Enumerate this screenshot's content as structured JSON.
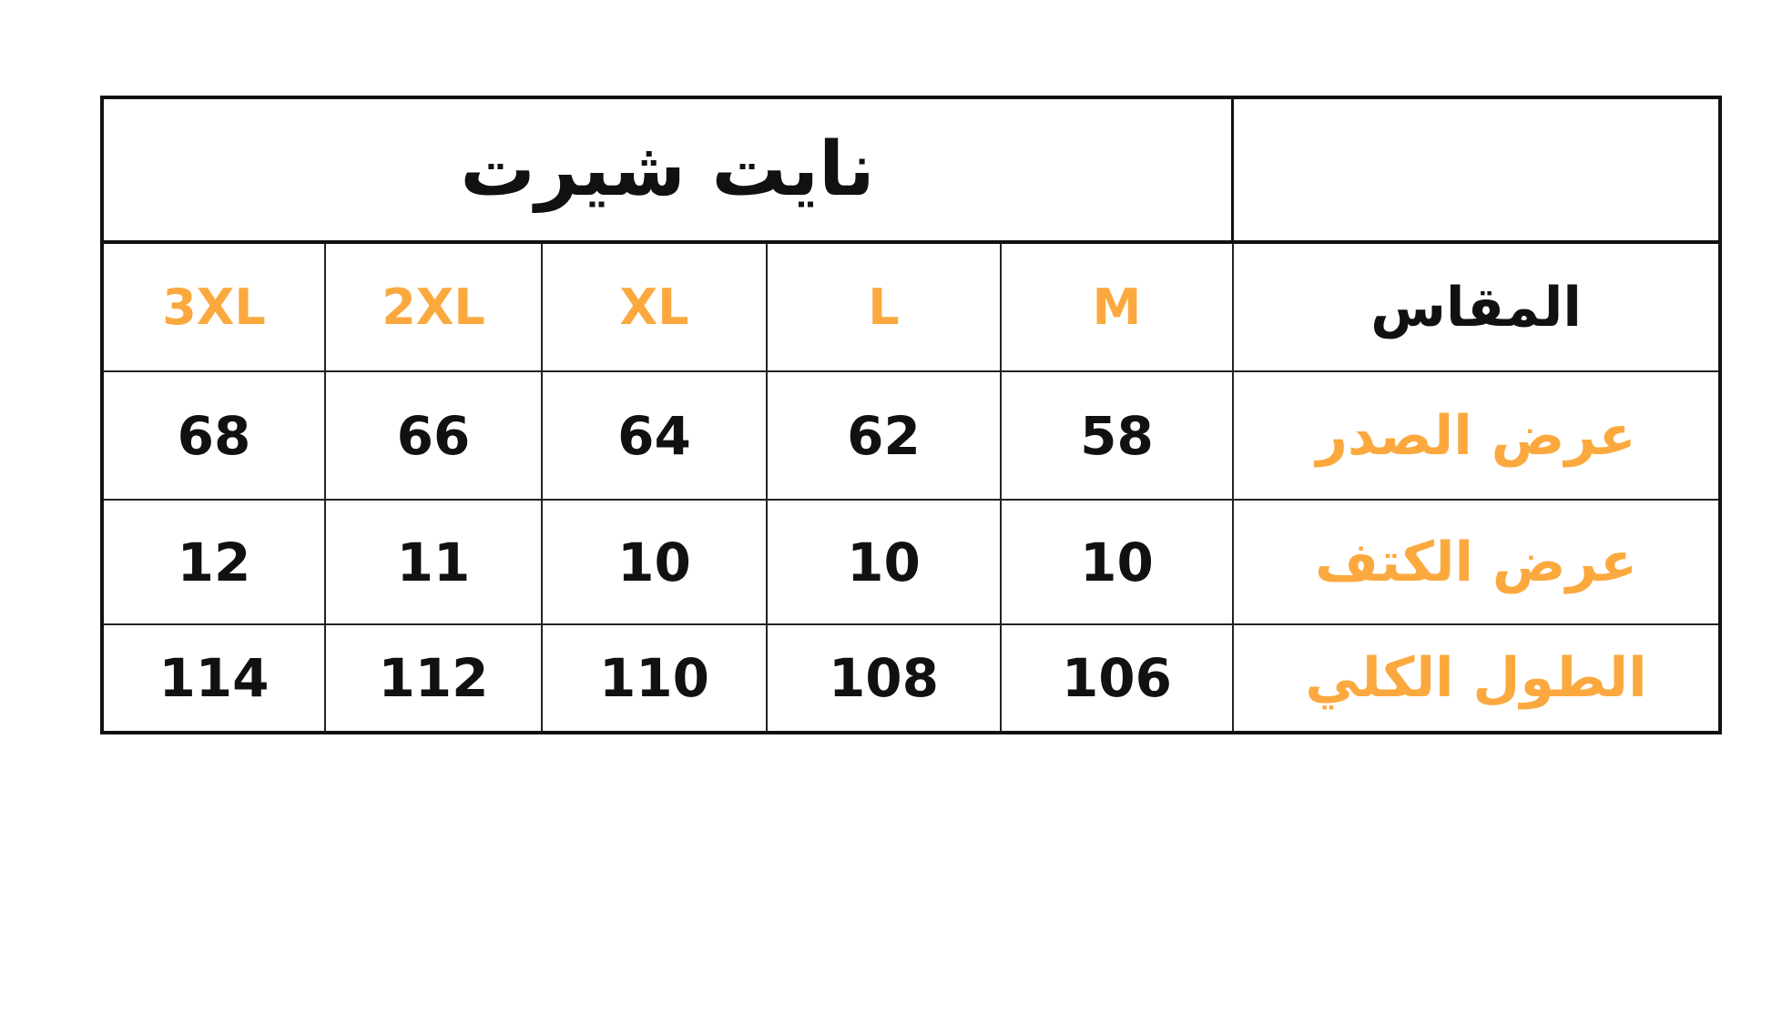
{
  "title": "نايت شيرت",
  "header_label": "المقاس",
  "sizes": [
    "3XL",
    "2XL",
    "XL",
    "L",
    "M"
  ],
  "rows": [
    {
      "label": "عرض الصدر",
      "values": [
        "68",
        "66",
        "64",
        "62",
        "58"
      ]
    },
    {
      "label": "عرض الكتف",
      "values": [
        "12",
        "11",
        "10",
        "10",
        "10"
      ]
    },
    {
      "label": "الطول الكلي",
      "values": [
        "114",
        "112",
        "110",
        "108",
        "106"
      ]
    }
  ],
  "colors": {
    "accent": "#FBA93F",
    "text": "#111111",
    "border": "#111111"
  }
}
